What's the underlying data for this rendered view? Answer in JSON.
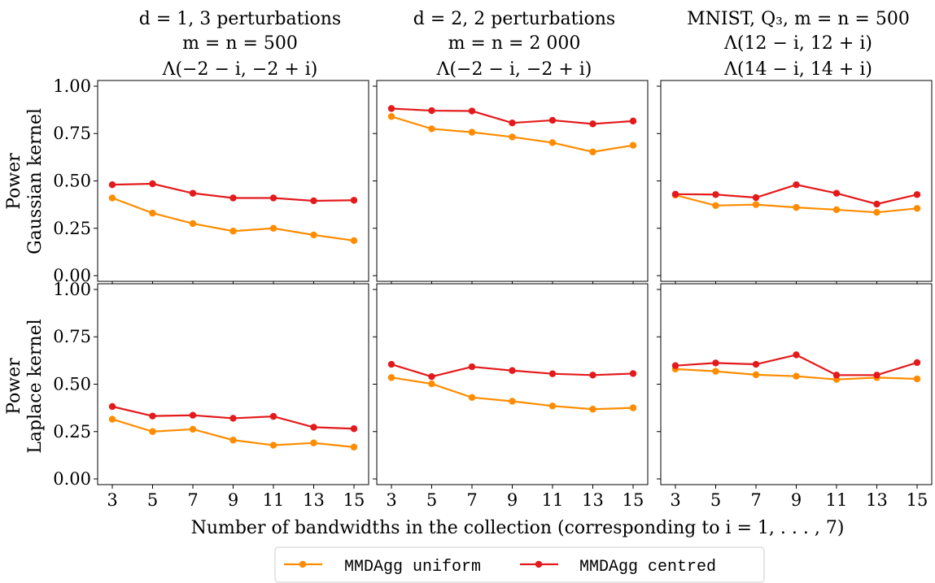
{
  "figure": {
    "xlabel": "Number of bandwidths in the collection (corresponding to i = 1, . . . , 7)"
  },
  "row_labels": [
    {
      "line1": "Power",
      "line2": "Gaussian kernel"
    },
    {
      "line1": "Power",
      "line2": "Laplace kernel"
    }
  ],
  "column_titles": [
    [
      "d = 1, 3 perturbations",
      "m = n = 500",
      "Λ(−2 − i, −2 + i)"
    ],
    [
      "d = 2, 2 perturbations",
      "m = n = 2 000",
      "Λ(−2 − i, −2 + i)"
    ],
    [
      "MNIST, Q₃, m = n = 500",
      "Λ(12 − i, 12 + i)",
      "Λ(14 − i, 14 + i)"
    ]
  ],
  "legend": {
    "items": [
      {
        "label": "MMDAgg uniform",
        "color": "#ff8c00"
      },
      {
        "label": "MMDAgg centred",
        "color": "#e31a1c"
      }
    ]
  },
  "chart_data": [
    {
      "type": "line",
      "row": 0,
      "col": 0,
      "x": [
        3,
        5,
        7,
        9,
        11,
        13,
        15
      ],
      "yticks": [
        "0.00",
        "0.25",
        "0.50",
        "0.75",
        "1.00"
      ],
      "ylim": [
        -0.03,
        1.03
      ],
      "series": [
        {
          "name": "MMDAgg uniform",
          "color": "#ff8c00",
          "values": [
            0.41,
            0.33,
            0.275,
            0.235,
            0.25,
            0.215,
            0.185
          ]
        },
        {
          "name": "MMDAgg centred",
          "color": "#e31a1c",
          "values": [
            0.48,
            0.485,
            0.435,
            0.41,
            0.41,
            0.395,
            0.398
          ]
        }
      ]
    },
    {
      "type": "line",
      "row": 0,
      "col": 1,
      "x": [
        3,
        5,
        7,
        9,
        11,
        13,
        15
      ],
      "ylim": [
        -0.03,
        1.03
      ],
      "series": [
        {
          "name": "MMDAgg uniform",
          "color": "#ff8c00",
          "values": [
            0.84,
            0.775,
            0.757,
            0.732,
            0.702,
            0.653,
            0.688
          ]
        },
        {
          "name": "MMDAgg centred",
          "color": "#e31a1c",
          "values": [
            0.882,
            0.871,
            0.869,
            0.806,
            0.82,
            0.801,
            0.816
          ]
        }
      ]
    },
    {
      "type": "line",
      "row": 0,
      "col": 2,
      "x": [
        3,
        5,
        7,
        9,
        11,
        13,
        15
      ],
      "ylim": [
        -0.03,
        1.03
      ],
      "series": [
        {
          "name": "MMDAgg uniform",
          "color": "#ff8c00",
          "values": [
            0.425,
            0.37,
            0.375,
            0.36,
            0.348,
            0.334,
            0.355
          ]
        },
        {
          "name": "MMDAgg centred",
          "color": "#e31a1c",
          "values": [
            0.43,
            0.428,
            0.412,
            0.48,
            0.435,
            0.378,
            0.428
          ]
        }
      ]
    },
    {
      "type": "line",
      "row": 1,
      "col": 0,
      "x": [
        3,
        5,
        7,
        9,
        11,
        13,
        15
      ],
      "xticks": [
        "3",
        "5",
        "7",
        "9",
        "11",
        "13",
        "15"
      ],
      "yticks": [
        "0.00",
        "0.25",
        "0.50",
        "0.75",
        "1.00"
      ],
      "ylim": [
        -0.03,
        1.03
      ],
      "series": [
        {
          "name": "MMDAgg uniform",
          "color": "#ff8c00",
          "values": [
            0.315,
            0.25,
            0.262,
            0.205,
            0.178,
            0.19,
            0.168
          ]
        },
        {
          "name": "MMDAgg centred",
          "color": "#e31a1c",
          "values": [
            0.382,
            0.332,
            0.336,
            0.32,
            0.33,
            0.273,
            0.265
          ]
        }
      ]
    },
    {
      "type": "line",
      "row": 1,
      "col": 1,
      "x": [
        3,
        5,
        7,
        9,
        11,
        13,
        15
      ],
      "xticks": [
        "3",
        "5",
        "7",
        "9",
        "11",
        "13",
        "15"
      ],
      "ylim": [
        -0.03,
        1.03
      ],
      "series": [
        {
          "name": "MMDAgg uniform",
          "color": "#ff8c00",
          "values": [
            0.535,
            0.502,
            0.43,
            0.41,
            0.385,
            0.368,
            0.375
          ]
        },
        {
          "name": "MMDAgg centred",
          "color": "#e31a1c",
          "values": [
            0.605,
            0.54,
            0.592,
            0.572,
            0.555,
            0.548,
            0.556
          ]
        }
      ]
    },
    {
      "type": "line",
      "row": 1,
      "col": 2,
      "x": [
        3,
        5,
        7,
        9,
        11,
        13,
        15
      ],
      "xticks": [
        "3",
        "5",
        "7",
        "9",
        "11",
        "13",
        "15"
      ],
      "ylim": [
        -0.03,
        1.03
      ],
      "series": [
        {
          "name": "MMDAgg uniform",
          "color": "#ff8c00",
          "values": [
            0.58,
            0.568,
            0.55,
            0.542,
            0.525,
            0.535,
            0.528
          ]
        },
        {
          "name": "MMDAgg centred",
          "color": "#e31a1c",
          "values": [
            0.598,
            0.612,
            0.605,
            0.655,
            0.548,
            0.548,
            0.614
          ]
        }
      ]
    }
  ]
}
